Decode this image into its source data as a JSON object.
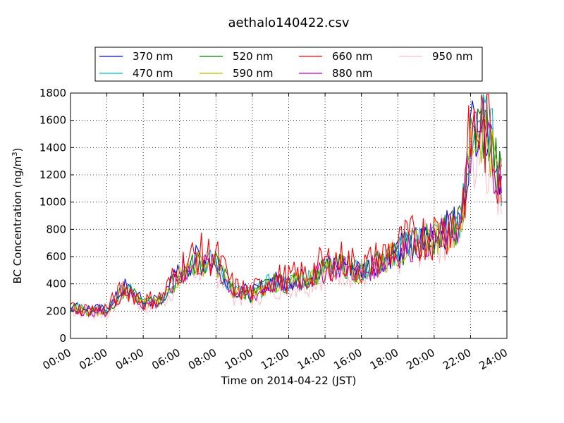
{
  "chart_data": {
    "type": "line",
    "title": "aethalo140422.csv",
    "xlabel": "Time on 2014-04-22 (JST)",
    "ylabel": "BC Concentration (ng/m",
    "ylabel_superscript": "3",
    "ylabel_suffix": ")",
    "xlim": [
      "00:00",
      "24:00"
    ],
    "ylim": [
      0,
      1800
    ],
    "x_ticks": [
      "00:00",
      "02:00",
      "04:00",
      "06:00",
      "08:00",
      "10:00",
      "12:00",
      "14:00",
      "16:00",
      "18:00",
      "20:00",
      "22:00",
      "24:00"
    ],
    "y_ticks": [
      "0",
      "200",
      "400",
      "600",
      "800",
      "1000",
      "1200",
      "1400",
      "1600",
      "1800"
    ],
    "grid": true,
    "legend_position": "top",
    "x_hours": [
      0,
      1,
      2,
      3,
      4,
      5,
      6,
      7,
      8,
      9,
      10,
      11,
      12,
      13,
      14,
      15,
      16,
      17,
      18,
      19,
      20,
      21,
      21.5,
      22,
      22.5,
      23,
      23.5,
      23.8
    ],
    "series": [
      {
        "name": "370 nm",
        "color": "#0000ff",
        "values": [
          240,
          220,
          210,
          380,
          270,
          290,
          500,
          590,
          570,
          360,
          330,
          420,
          420,
          450,
          530,
          560,
          500,
          570,
          650,
          720,
          760,
          820,
          880,
          1500,
          1700,
          1600,
          1280,
          1150
        ]
      },
      {
        "name": "470 nm",
        "color": "#00bfbf",
        "values": [
          230,
          210,
          210,
          370,
          260,
          280,
          480,
          570,
          550,
          350,
          320,
          410,
          410,
          440,
          510,
          550,
          490,
          560,
          640,
          710,
          760,
          810,
          870,
          1460,
          1640,
          1560,
          1260,
          1130
        ]
      },
      {
        "name": "520 nm",
        "color": "#008000",
        "values": [
          225,
          205,
          205,
          365,
          255,
          275,
          470,
          560,
          540,
          345,
          315,
          405,
          405,
          435,
          505,
          540,
          485,
          555,
          630,
          700,
          745,
          800,
          860,
          1430,
          1560,
          1500,
          1230,
          1110
        ]
      },
      {
        "name": "590 nm",
        "color": "#bfbf00",
        "values": [
          220,
          200,
          200,
          360,
          250,
          270,
          465,
          555,
          535,
          340,
          310,
          400,
          400,
          430,
          500,
          535,
          480,
          550,
          625,
          695,
          740,
          795,
          850,
          1420,
          1540,
          1480,
          1210,
          1100
        ]
      },
      {
        "name": "660 nm",
        "color": "#ff0000",
        "values": [
          230,
          210,
          220,
          380,
          270,
          300,
          520,
          620,
          600,
          370,
          340,
          440,
          440,
          470,
          560,
          580,
          520,
          590,
          680,
          740,
          770,
          830,
          900,
          1480,
          1560,
          1520,
          1280,
          1150
        ]
      },
      {
        "name": "880 nm",
        "color": "#bf00bf",
        "values": [
          215,
          195,
          195,
          355,
          245,
          265,
          460,
          545,
          525,
          335,
          305,
          395,
          395,
          425,
          495,
          525,
          475,
          545,
          620,
          690,
          735,
          790,
          845,
          1400,
          1510,
          1450,
          1190,
          1080
        ]
      },
      {
        "name": "950 nm",
        "color": "#ffc0cb",
        "values": [
          205,
          185,
          185,
          340,
          235,
          255,
          440,
          525,
          505,
          320,
          290,
          380,
          380,
          410,
          480,
          510,
          460,
          530,
          600,
          670,
          715,
          770,
          825,
          1360,
          1460,
          1400,
          1140,
          1030
        ]
      }
    ]
  }
}
